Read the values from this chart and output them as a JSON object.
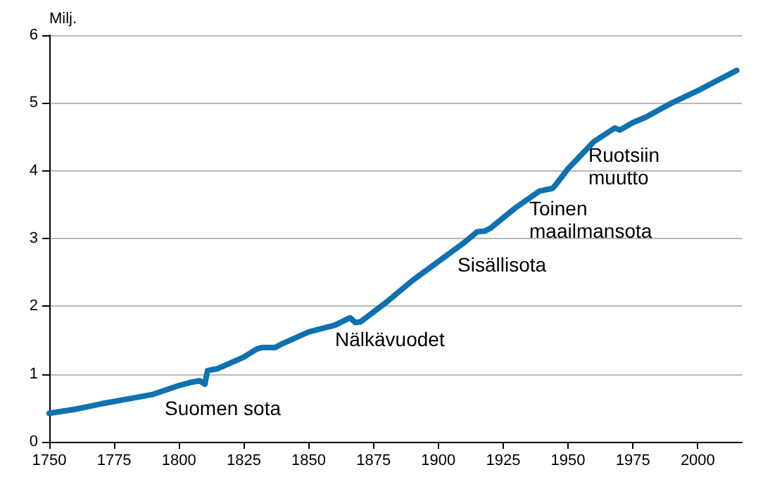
{
  "chart_data": {
    "type": "line",
    "ylabel": "Milj.",
    "x": [
      1750,
      1760,
      1770,
      1780,
      1790,
      1800,
      1805,
      1808,
      1810,
      1811,
      1815,
      1825,
      1830,
      1832,
      1837,
      1840,
      1850,
      1856,
      1860,
      1866,
      1868,
      1870,
      1880,
      1890,
      1900,
      1910,
      1915,
      1918,
      1920,
      1930,
      1939,
      1944,
      1945,
      1950,
      1960,
      1968,
      1970,
      1975,
      1980,
      1990,
      2000,
      2010,
      2015
    ],
    "series": [
      {
        "color": "#0f72b0",
        "values": [
          0.42,
          0.48,
          0.56,
          0.63,
          0.7,
          0.83,
          0.88,
          0.9,
          0.85,
          1.05,
          1.08,
          1.25,
          1.37,
          1.39,
          1.39,
          1.45,
          1.62,
          1.68,
          1.72,
          1.83,
          1.76,
          1.77,
          2.06,
          2.38,
          2.66,
          2.94,
          3.1,
          3.11,
          3.15,
          3.46,
          3.7,
          3.74,
          3.78,
          4.03,
          4.43,
          4.63,
          4.6,
          4.71,
          4.79,
          5.0,
          5.18,
          5.38,
          5.48
        ]
      }
    ],
    "xlim": [
      1750,
      2017
    ],
    "xticks": [
      1750,
      1775,
      1800,
      1825,
      1850,
      1875,
      1900,
      1925,
      1950,
      1975,
      2000
    ],
    "ylim": [
      0,
      6
    ],
    "yticks": [
      0,
      1,
      2,
      3,
      4,
      5,
      6
    ],
    "grid": "y",
    "marker": "none",
    "line_style": "solid",
    "annotations": [
      "Suomen sota",
      "Nälkävuodet",
      "Sisällisota",
      "Toinen\nmaailmansota",
      "Ruotsiin\nmuutto"
    ]
  }
}
